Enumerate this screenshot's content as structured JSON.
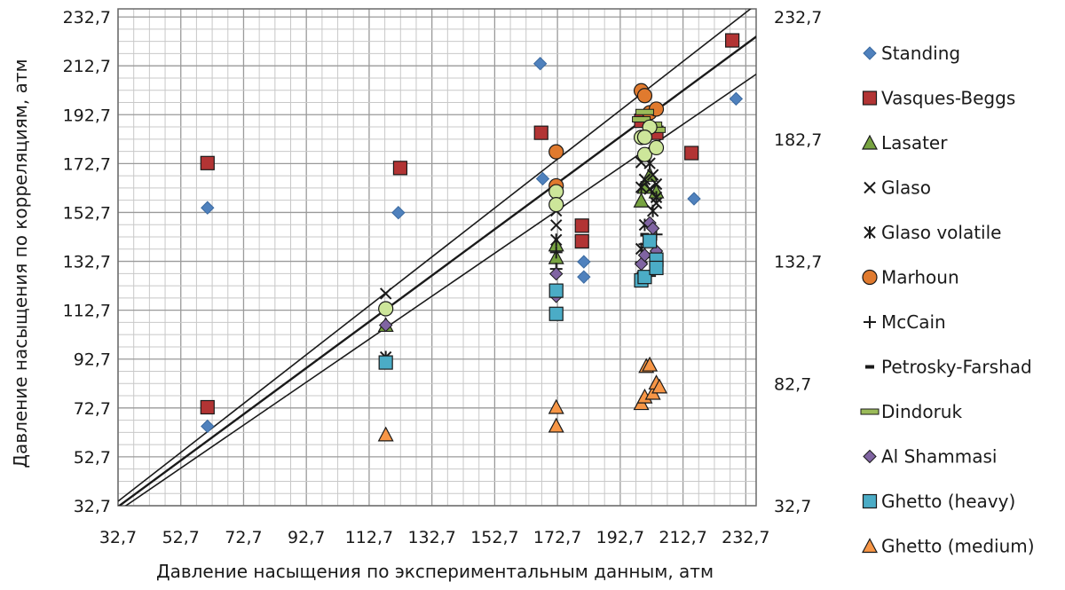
{
  "chart_data": {
    "type": "scatter",
    "title": "",
    "xlabel": "Давление насыщения по экспериментальным данным, атм",
    "ylabel": "Давление насыщения по корреляциям, атм",
    "xlim": [
      32.7,
      236
    ],
    "ylim": [
      32.7,
      236
    ],
    "x_ticks": [
      "32,7",
      "52,7",
      "72,7",
      "92,7",
      "112,7",
      "132,7",
      "152,7",
      "172,7",
      "192,7",
      "212,7",
      "232,7"
    ],
    "y_ticks": [
      "32,7",
      "52,7",
      "72,7",
      "92,7",
      "112,7",
      "132,7",
      "152,7",
      "172,7",
      "192,7",
      "212,7",
      "232,7"
    ],
    "y2_ticks": [
      "32,7",
      "82,7",
      "132,7",
      "182,7",
      "232,7"
    ],
    "grid": true,
    "legend_position": "right",
    "reference_lines": [
      {
        "x": [
          32.7,
          238
        ],
        "y": [
          34.5,
          239.8
        ]
      },
      {
        "x": [
          32.7,
          238
        ],
        "y": [
          32.3,
          226.5
        ]
      },
      {
        "x": [
          32.7,
          238
        ],
        "y": [
          30.5,
          211
        ]
      }
    ],
    "series": [
      {
        "name": "Standing",
        "marker": "diamond",
        "color": "#4f81bd",
        "points": [
          [
            61.2,
            154.6
          ],
          [
            61.2,
            65.2
          ],
          [
            122,
            152.6
          ],
          [
            167.2,
            213.6
          ],
          [
            168,
            166.5
          ],
          [
            181.1,
            132.5
          ],
          [
            181.1,
            126.3
          ],
          [
            216.2,
            158.3
          ],
          [
            229.6,
            199.2
          ]
        ]
      },
      {
        "name": "Vasques-Beggs",
        "marker": "square",
        "color": "#b23434",
        "points": [
          [
            61.2,
            172.9
          ],
          [
            61.2,
            73
          ],
          [
            122.6,
            170.9
          ],
          [
            167.5,
            185.3
          ],
          [
            180.5,
            147.3
          ],
          [
            180.5,
            140.9
          ],
          [
            199.4,
            190.2
          ],
          [
            204.2,
            185.3
          ],
          [
            215.4,
            177
          ],
          [
            228.4,
            223.1
          ]
        ]
      },
      {
        "name": "Lasater",
        "marker": "triangle",
        "color": "#77a341",
        "points": [
          [
            118,
            106.6
          ],
          [
            172.3,
            139.5
          ],
          [
            172.3,
            134.3
          ],
          [
            199.4,
            157.5
          ],
          [
            200.5,
            163.1
          ],
          [
            202.1,
            168
          ],
          [
            204.2,
            161.2
          ]
        ]
      },
      {
        "name": "Glaso",
        "marker": "x",
        "color": "#1a1a1a",
        "points": [
          [
            118,
            119.5
          ],
          [
            172.3,
            153.4
          ],
          [
            172.3,
            147.5
          ],
          [
            199.4,
            173.2
          ],
          [
            200.5,
            166.2
          ],
          [
            202.1,
            162.3
          ],
          [
            203.1,
            168.1
          ],
          [
            204.2,
            156.5
          ],
          [
            204.2,
            164.3
          ]
        ]
      },
      {
        "name": "Glaso volatile",
        "marker": "asterisk",
        "color": "#1a1a1a",
        "points": [
          [
            118,
            93.5
          ],
          [
            172.3,
            141.5
          ],
          [
            199.4,
            163
          ],
          [
            200.5,
            147.6
          ],
          [
            202.1,
            172.8
          ],
          [
            203.1,
            153.3
          ],
          [
            204.2,
            158.9
          ],
          [
            199.4,
            137.8
          ]
        ]
      },
      {
        "name": "Marhoun",
        "marker": "circle",
        "color": "#e07a2e",
        "points": [
          [
            172.3,
            177.5
          ],
          [
            172.3,
            163.6
          ],
          [
            199.4,
            202.5
          ],
          [
            200.5,
            200.5
          ],
          [
            202.1,
            193.5
          ],
          [
            204.2,
            195
          ]
        ]
      },
      {
        "name": "McCain",
        "marker": "plus",
        "color": "#1a1a1a",
        "points": [
          [
            172.3,
            129.6
          ],
          [
            172.3,
            136.4
          ],
          [
            199.4,
            132.3
          ],
          [
            200.5,
            139.7
          ],
          [
            202.1,
            126.7
          ],
          [
            204.2,
            143.7
          ]
        ]
      },
      {
        "name": "Petrosky-Farshad",
        "marker": "dash",
        "color": "#1a1a1a",
        "points": [
          [
            172.3,
            121.5
          ],
          [
            199.4,
            127.8
          ],
          [
            203.1,
            134.7
          ],
          [
            200.5,
            143.6
          ]
        ]
      },
      {
        "name": "Dindoruk",
        "marker": "hbar",
        "color": "#9bbb59",
        "points": [
          [
            199.4,
            190.8
          ],
          [
            200.5,
            193.8
          ],
          [
            203.1,
            188.6
          ],
          [
            204.2,
            186.5
          ]
        ]
      },
      {
        "name": "Al Shammasi",
        "marker": "diamond",
        "color": "#8064a2",
        "points": [
          [
            118,
            106.6
          ],
          [
            172.3,
            127.6
          ],
          [
            172.3,
            118.4
          ],
          [
            199.4,
            131.6
          ],
          [
            200.5,
            135.2
          ],
          [
            202.1,
            148.4
          ],
          [
            203.1,
            146.2
          ],
          [
            204.2,
            136.9
          ]
        ]
      },
      {
        "name": "Ghetto (heavy)",
        "marker": "square",
        "color": "#4bacc6",
        "points": [
          [
            118,
            91.3
          ],
          [
            172.3,
            120.7
          ],
          [
            172.3,
            111.2
          ],
          [
            199.4,
            124.9
          ],
          [
            200.5,
            126.3
          ],
          [
            202.1,
            141
          ],
          [
            204.2,
            133.4
          ],
          [
            204.2,
            130
          ]
        ]
      },
      {
        "name": "Ghetto (medium)",
        "marker": "triangle",
        "color": "#f79646",
        "points": [
          [
            118,
            61.8
          ],
          [
            172.3,
            73
          ],
          [
            172.3,
            65.4
          ],
          [
            199.4,
            74.6
          ],
          [
            200.5,
            77.3
          ],
          [
            201,
            89.8
          ],
          [
            202.1,
            90.4
          ],
          [
            203.1,
            78.8
          ],
          [
            204.2,
            83
          ],
          [
            205.2,
            81.4
          ]
        ]
      },
      {
        "name": "",
        "marker": "circle",
        "color": "#cde69a",
        "points": [
          [
            118,
            113.3
          ],
          [
            172.3,
            161.2
          ],
          [
            172.3,
            155.9
          ],
          [
            199.4,
            183.4
          ],
          [
            200.5,
            176.4
          ],
          [
            202.1,
            187.6
          ],
          [
            204.2,
            179.2
          ],
          [
            200.5,
            183.5
          ]
        ]
      }
    ]
  }
}
